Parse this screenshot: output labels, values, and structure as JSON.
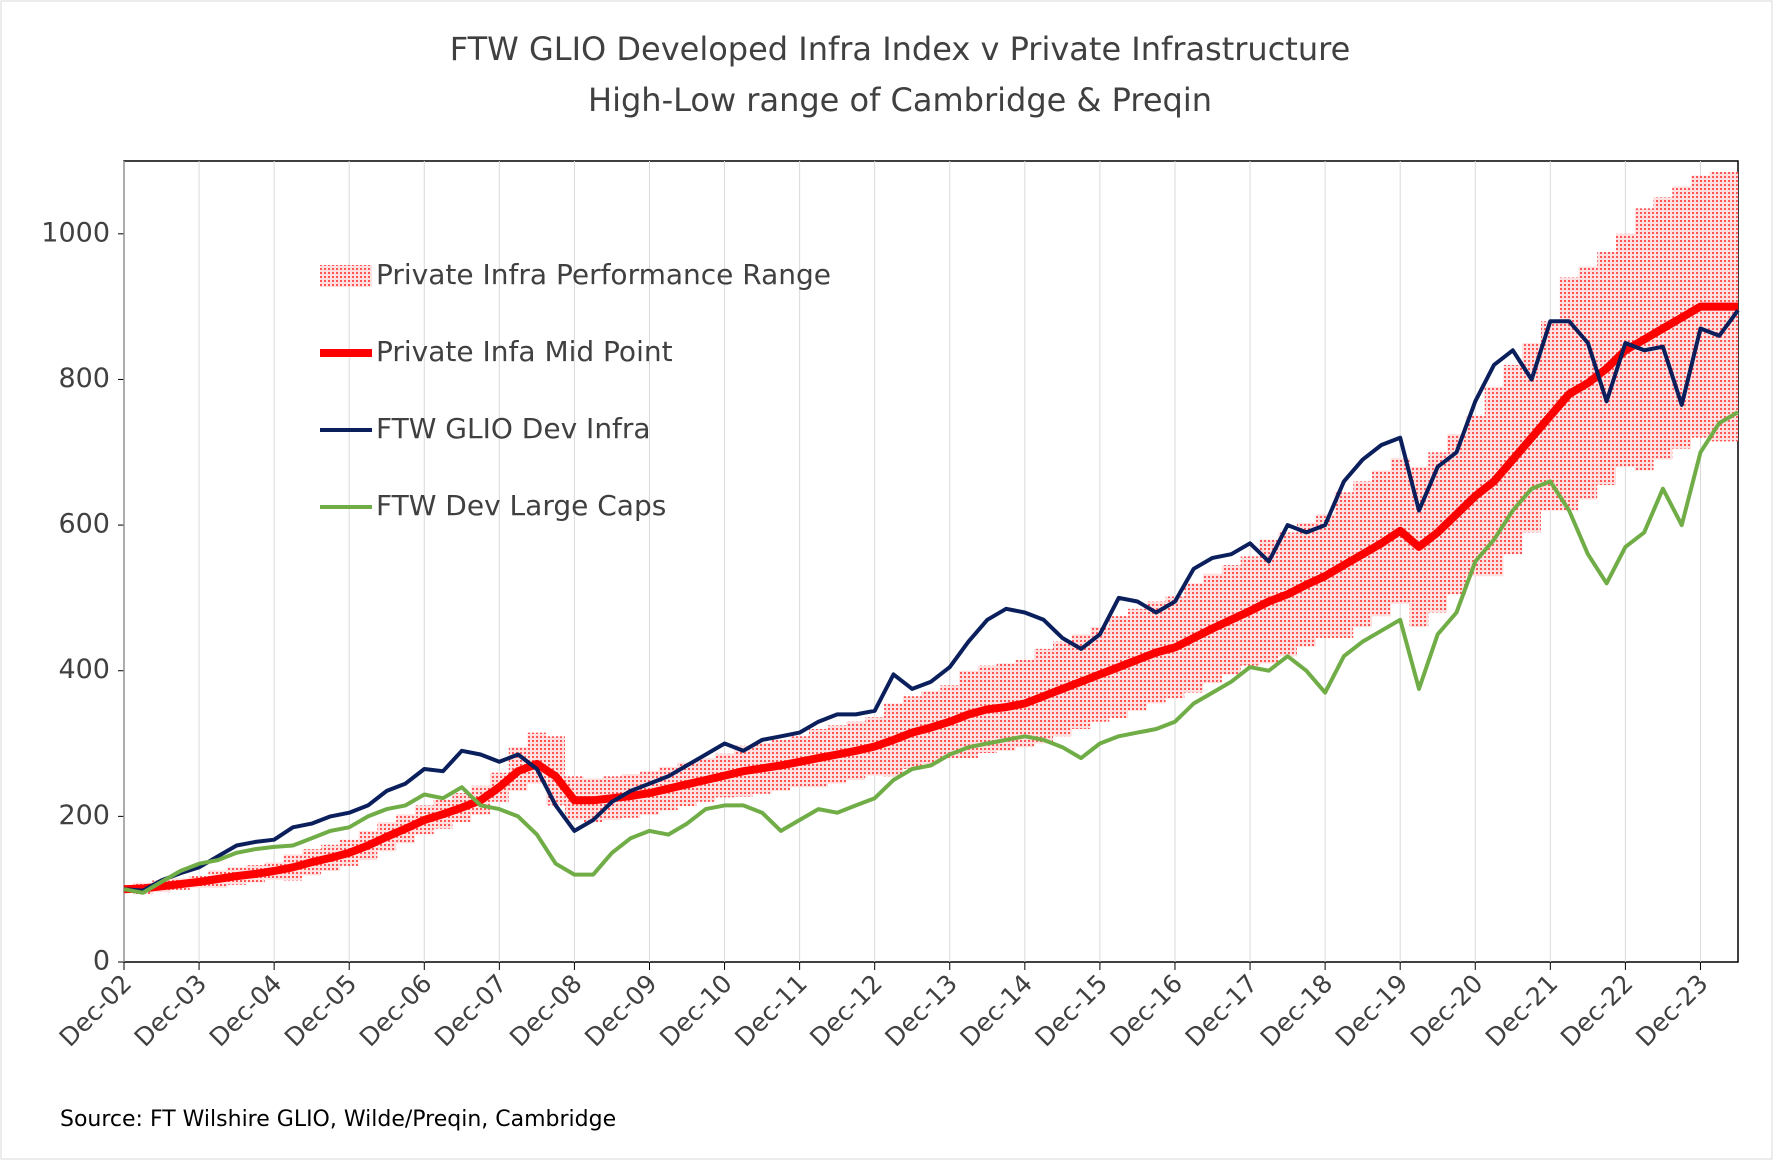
{
  "chart_data": {
    "type": "line",
    "title": [
      "FTW GLIO Developed Infra Index v Private Infrastructure",
      "High-Low range of Cambridge & Preqin"
    ],
    "source": "Source: FT Wilshire GLIO, Wilde/Preqin, Cambridge",
    "categories": [
      "Dec-02",
      null,
      null,
      null,
      "Dec-03",
      null,
      null,
      null,
      "Dec-04",
      null,
      null,
      null,
      "Dec-05",
      null,
      null,
      null,
      "Dec-06",
      null,
      null,
      null,
      "Dec-07",
      null,
      null,
      null,
      "Dec-08",
      null,
      null,
      null,
      "Dec-09",
      null,
      null,
      null,
      "Dec-10",
      null,
      null,
      null,
      "Dec-11",
      null,
      null,
      null,
      "Dec-12",
      null,
      null,
      null,
      "Dec-13",
      null,
      null,
      null,
      "Dec-14",
      null,
      null,
      null,
      "Dec-15",
      null,
      null,
      null,
      "Dec-16",
      null,
      null,
      null,
      "Dec-17",
      null,
      null,
      null,
      "Dec-18",
      null,
      null,
      null,
      "Dec-19",
      null,
      null,
      null,
      "Dec-20",
      null,
      null,
      null,
      "Dec-21",
      null,
      null,
      null,
      "Dec-22",
      null,
      null,
      null,
      "Dec-23",
      null,
      null
    ],
    "ylim": [
      0,
      1100
    ],
    "yticks": [
      0,
      200,
      400,
      600,
      800,
      1000
    ],
    "series": [
      {
        "name": "Private Infra Performance Range",
        "color": "#ff6666",
        "low": [
          97,
          93,
          96,
          99,
          102,
          102,
          106,
          109,
          113,
          112,
          119,
          125,
          132,
          140,
          152,
          163,
          175,
          183,
          192,
          202,
          220,
          235,
          245,
          215,
          195,
          192,
          195,
          198,
          202,
          208,
          214,
          220,
          226,
          227,
          231,
          235,
          240,
          240,
          245,
          250,
          256,
          255,
          265,
          272,
          280,
          280,
          287,
          290,
          295,
          300,
          310,
          320,
          330,
          335,
          345,
          355,
          362,
          370,
          383,
          395,
          407,
          410,
          420,
          433,
          445,
          445,
          460,
          475,
          492,
          460,
          480,
          505,
          530,
          530,
          560,
          590,
          620,
          620,
          635,
          655,
          680,
          675,
          690,
          705,
          720,
          715,
          715
        ],
        "high": [
          103,
          109,
          112,
          115,
          118,
          126,
          130,
          133,
          137,
          148,
          155,
          161,
          168,
          180,
          192,
          203,
          215,
          223,
          232,
          242,
          260,
          295,
          315,
          310,
          255,
          252,
          255,
          258,
          262,
          268,
          274,
          280,
          286,
          297,
          301,
          305,
          310,
          320,
          325,
          330,
          336,
          355,
          365,
          372,
          380,
          400,
          407,
          410,
          415,
          430,
          440,
          450,
          460,
          475,
          485,
          495,
          502,
          520,
          533,
          545,
          557,
          580,
          590,
          603,
          615,
          645,
          660,
          675,
          692,
          680,
          700,
          725,
          750,
          790,
          820,
          850,
          880,
          940,
          955,
          975,
          1000,
          1035,
          1050,
          1065,
          1080,
          1085,
          1085
        ]
      },
      {
        "name": "Private Infa Mid Point",
        "color": "#ff0000",
        "values": [
          100,
          101,
          104,
          107,
          110,
          114,
          118,
          121,
          125,
          130,
          137,
          143,
          150,
          160,
          172,
          183,
          195,
          203,
          212,
          222,
          240,
          262,
          272,
          255,
          222,
          222,
          225,
          228,
          232,
          238,
          244,
          250,
          256,
          262,
          266,
          270,
          275,
          280,
          285,
          290,
          296,
          305,
          315,
          322,
          330,
          340,
          347,
          350,
          355,
          365,
          375,
          385,
          395,
          405,
          415,
          425,
          432,
          445,
          458,
          470,
          482,
          495,
          505,
          518,
          530,
          545,
          560,
          575,
          592,
          570,
          590,
          615,
          640,
          660,
          690,
          720,
          750,
          780,
          795,
          815,
          840,
          855,
          870,
          885,
          900,
          900,
          900
        ]
      },
      {
        "name": "FTW GLIO Dev Infra",
        "color": "#0a1f5c",
        "values": [
          100,
          98,
          112,
          122,
          130,
          145,
          160,
          165,
          168,
          185,
          190,
          200,
          205,
          215,
          235,
          245,
          265,
          262,
          290,
          285,
          275,
          285,
          265,
          215,
          180,
          195,
          220,
          235,
          245,
          255,
          270,
          285,
          300,
          290,
          305,
          310,
          315,
          330,
          340,
          340,
          345,
          395,
          375,
          385,
          405,
          440,
          470,
          485,
          480,
          470,
          445,
          430,
          450,
          500,
          495,
          480,
          495,
          540,
          555,
          560,
          575,
          550,
          600,
          590,
          600,
          660,
          690,
          710,
          720,
          620,
          680,
          700,
          770,
          820,
          840,
          800,
          880,
          880,
          850,
          770,
          850,
          840,
          845,
          765,
          870,
          860,
          895
        ]
      },
      {
        "name": "FTW Dev Large Caps",
        "color": "#70ad47",
        "values": [
          100,
          95,
          110,
          125,
          135,
          140,
          150,
          155,
          158,
          160,
          170,
          180,
          185,
          200,
          210,
          215,
          230,
          225,
          240,
          215,
          210,
          200,
          175,
          135,
          120,
          120,
          150,
          170,
          180,
          175,
          190,
          210,
          215,
          215,
          205,
          180,
          195,
          210,
          205,
          215,
          225,
          250,
          265,
          270,
          285,
          295,
          300,
          305,
          310,
          305,
          295,
          280,
          300,
          310,
          315,
          320,
          330,
          355,
          370,
          385,
          405,
          400,
          420,
          400,
          370,
          420,
          440,
          455,
          470,
          375,
          450,
          480,
          550,
          580,
          620,
          650,
          660,
          620,
          560,
          520,
          570,
          590,
          650,
          600,
          700,
          740,
          755
        ]
      }
    ]
  }
}
